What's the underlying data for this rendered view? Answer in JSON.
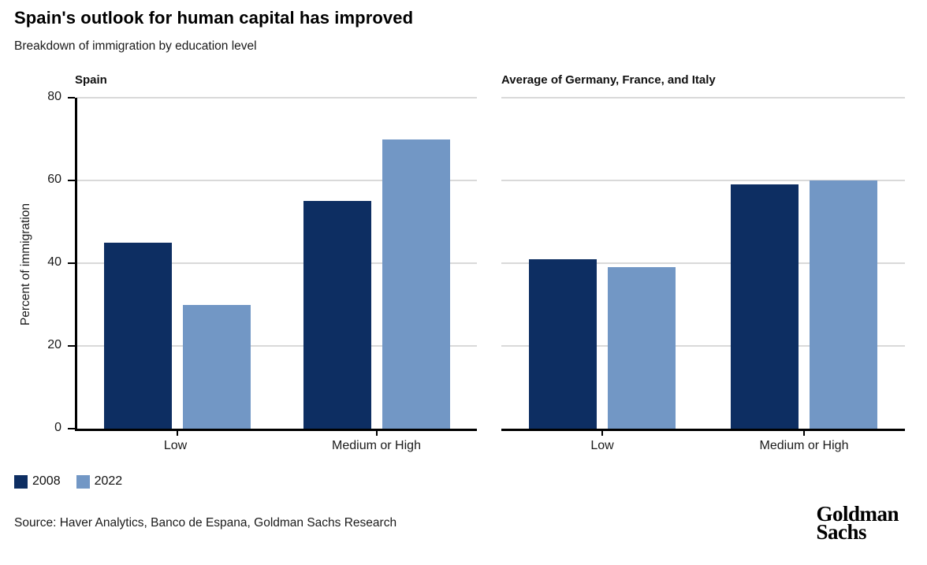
{
  "header": {
    "title": "Spain's outlook for human capital has improved",
    "subtitle": "Breakdown of immigration by education level"
  },
  "colors": {
    "series_2008": "#0d2e62",
    "series_2022": "#7297c5",
    "gridline": "#d9d9d9",
    "axis": "#000000"
  },
  "chart_data": [
    {
      "type": "bar",
      "title": "Spain",
      "ylabel": "Percent of immigration",
      "categories": [
        "Low",
        "Medium or High"
      ],
      "series": [
        {
          "name": "2008",
          "color": "#0d2e62",
          "values": [
            45,
            55
          ]
        },
        {
          "name": "2022",
          "color": "#7297c5",
          "values": [
            30,
            70
          ]
        }
      ],
      "ylim": [
        0,
        80
      ],
      "yticks": [
        0,
        20,
        40,
        60,
        80
      ],
      "show_y_axis": true,
      "grid": true
    },
    {
      "type": "bar",
      "title": "Average of Germany, France, and Italy",
      "ylabel": "",
      "categories": [
        "Low",
        "Medium or High"
      ],
      "series": [
        {
          "name": "2008",
          "color": "#0d2e62",
          "values": [
            41,
            59
          ]
        },
        {
          "name": "2022",
          "color": "#7297c5",
          "values": [
            39,
            60
          ]
        }
      ],
      "ylim": [
        0,
        80
      ],
      "yticks": [
        0,
        20,
        40,
        60,
        80
      ],
      "show_y_axis": false,
      "grid": true
    }
  ],
  "legend": [
    {
      "label": "2008",
      "color": "#0d2e62"
    },
    {
      "label": "2022",
      "color": "#7297c5"
    }
  ],
  "footer": {
    "source": "Source: Haver Analytics, Banco de Espana, Goldman Sachs Research",
    "logo_line1": "Goldman",
    "logo_line2": "Sachs"
  }
}
